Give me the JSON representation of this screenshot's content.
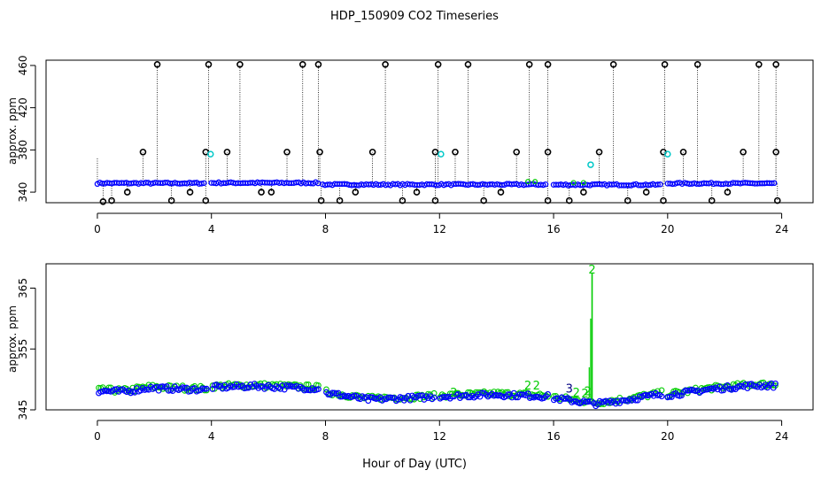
{
  "title": "HDP_150909  CO2 Timeseries",
  "xlabel": "Hour of Day (UTC)",
  "colors": {
    "raw": "#000000",
    "flagged": "#00c8c8",
    "valid": "#0000ff",
    "flag2": "#00cc00",
    "flag3": "#000080"
  },
  "chart_data": [
    {
      "type": "scatter",
      "panel": "top",
      "ylabel": "approx. ppm",
      "xlim": [
        -1.8,
        25.1
      ],
      "ylim": [
        330,
        465
      ],
      "x_ticks": [
        "0",
        "4",
        "8",
        "12",
        "16",
        "20",
        "24"
      ],
      "y_ticks": [
        "340",
        "380",
        "420",
        "460"
      ],
      "baseline_segments": [
        {
          "x0": 0.0,
          "x1": 3.8,
          "y": 348.5
        },
        {
          "x0": 4.0,
          "x1": 7.8,
          "y": 348.8
        },
        {
          "x0": 7.9,
          "x1": 15.8,
          "y": 347.2
        },
        {
          "x0": 16.0,
          "x1": 19.8,
          "y": 347.0
        },
        {
          "x0": 20.0,
          "x1": 23.8,
          "y": 348.3
        }
      ],
      "spikes_high": [
        2.1,
        3.9,
        5.0,
        7.2,
        7.75,
        10.1,
        11.95,
        13.0,
        15.15,
        15.8,
        18.1,
        19.9,
        21.05,
        23.2,
        23.8
      ],
      "spikes_mid": [
        1.6,
        3.8,
        4.55,
        6.65,
        7.8,
        9.65,
        11.85,
        12.55,
        14.7,
        15.8,
        17.6,
        19.85,
        20.55,
        22.65,
        23.8
      ],
      "spikes_low": [
        0.2,
        0.5,
        1.05,
        2.6,
        3.25,
        3.8,
        5.75,
        6.1,
        7.85,
        8.5,
        9.05,
        10.7,
        11.2,
        11.85,
        13.55,
        14.15,
        15.8,
        16.55,
        17.05,
        18.6,
        19.25,
        19.85,
        21.55,
        22.1,
        23.85
      ],
      "flagged_points": [
        {
          "x": 3.97,
          "y": 376
        },
        {
          "x": 12.05,
          "y": 376
        },
        {
          "x": 17.3,
          "y": 366
        },
        {
          "x": 20.0,
          "y": 376
        }
      ],
      "labels": {
        "y340": "340",
        "y380": "380",
        "y420": "420",
        "y460": "460",
        "x0": "0",
        "x4": "4",
        "x8": "8",
        "x12": "12",
        "x16": "16",
        "x20": "20",
        "x24": "24"
      }
    },
    {
      "type": "scatter",
      "panel": "bottom",
      "ylabel": "approx. ppm",
      "xlim": [
        -1.8,
        25.1
      ],
      "ylim": [
        345,
        369
      ],
      "x_ticks": [
        "0",
        "4",
        "8",
        "12",
        "16",
        "20",
        "24"
      ],
      "y_ticks": [
        "345",
        "355",
        "365"
      ],
      "series": [
        {
          "name": "valid",
          "x0": 0.05,
          "x1": 23.8,
          "baseline": [
            [
              0.0,
              348.1
            ],
            [
              1.0,
              348.0
            ],
            [
              1.8,
              348.6
            ],
            [
              3.8,
              348.3
            ],
            [
              4.0,
              348.7
            ],
            [
              5.5,
              348.9
            ],
            [
              7.8,
              348.5
            ],
            [
              8.0,
              347.8
            ],
            [
              9.5,
              346.7
            ],
            [
              11.8,
              347.1
            ],
            [
              12.0,
              347.2
            ],
            [
              14.0,
              347.5
            ],
            [
              15.8,
              347.2
            ],
            [
              16.0,
              346.9
            ],
            [
              17.5,
              346.0
            ],
            [
              18.5,
              346.6
            ],
            [
              19.8,
              347.6
            ],
            [
              20.0,
              347.4
            ],
            [
              21.5,
              348.4
            ],
            [
              23.0,
              349.0
            ],
            [
              23.8,
              349.0
            ]
          ]
        },
        {
          "name": "flag2",
          "markers": [
            {
              "x": 15.1,
              "y": 348.9,
              "t": "2"
            },
            {
              "x": 15.4,
              "y": 348.9,
              "t": "2"
            },
            {
              "x": 16.8,
              "y": 347.8,
              "t": "2"
            },
            {
              "x": 17.1,
              "y": 347.6,
              "t": "2"
            },
            {
              "x": 17.35,
              "y": 368.0,
              "t": "2"
            },
            {
              "x": 17.2,
              "y": 348.0,
              "t": "2"
            },
            {
              "x": 12.5,
              "y": 347.8,
              "t": "2"
            }
          ]
        },
        {
          "name": "flag3",
          "markers": [
            {
              "x": 16.55,
              "y": 348.4,
              "t": "3"
            }
          ]
        }
      ],
      "spike": {
        "x": 17.35,
        "peak": 367.5
      },
      "labels": {
        "y345": "345",
        "y355": "355",
        "y365": "365",
        "x0": "0",
        "x4": "4",
        "x8": "8",
        "x12": "12",
        "x16": "16",
        "x20": "20",
        "x24": "24"
      }
    }
  ]
}
